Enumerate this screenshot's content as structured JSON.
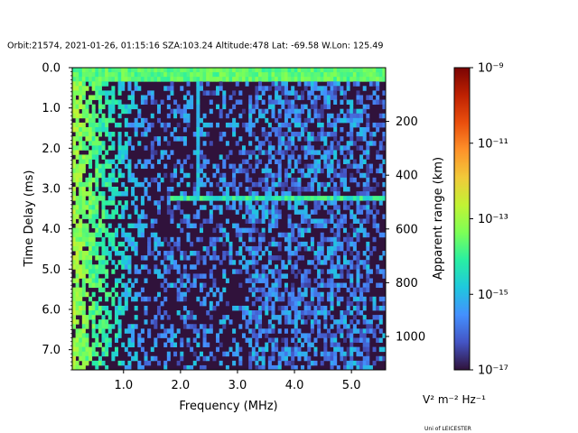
{
  "chart_data": {
    "type": "heatmap",
    "title": "Orbit:21574, 2021-01-26, 01:15:16 SZA:103.24 Altitude:478 Lat: -69.58 W.Lon: 125.49",
    "xlabel": "Frequency (MHz)",
    "ylabel": "Time Delay (ms)",
    "y2label": "Apparent range (km)",
    "xlim": [
      0.1,
      5.6
    ],
    "ylim": [
      7.5,
      0.0
    ],
    "x_ticks": [
      1.0,
      2.0,
      3.0,
      4.0,
      5.0
    ],
    "x_tick_labels": [
      "1.0",
      "2.0",
      "3.0",
      "4.0",
      "5.0"
    ],
    "y_ticks": [
      0.0,
      1.0,
      2.0,
      3.0,
      4.0,
      5.0,
      6.0,
      7.0
    ],
    "y_tick_labels": [
      "0.0",
      "1.0",
      "2.0",
      "3.0",
      "4.0",
      "5.0",
      "6.0",
      "7.0"
    ],
    "y2_ticks": [
      200,
      400,
      600,
      800,
      1000
    ],
    "y2_tick_labels": [
      "200",
      "400",
      "600",
      "800",
      "1000"
    ],
    "y2_km_per_ms": 149.9,
    "colorbar": {
      "scale": "log",
      "range_exponents": [
        -17,
        -9
      ],
      "tick_exponents": [
        -9,
        -11,
        -13,
        -15,
        -17
      ],
      "tick_labels": [
        "10⁻⁹",
        "10⁻¹¹",
        "10⁻¹³",
        "10⁻¹⁵",
        "10⁻¹⁷"
      ],
      "unit_label": "V² m⁻² Hz⁻¹",
      "colors": [
        "#30123b",
        "#4454c4",
        "#4490fe",
        "#1fc8de",
        "#29efa2",
        "#7dff56",
        "#c1f334",
        "#f1ca3a",
        "#fe922a",
        "#ea4f0d",
        "#be2102",
        "#7a0403"
      ]
    },
    "features": {
      "band_high_ms": [
        0.05,
        0.3
      ],
      "band_low_ms": [
        3.15,
        3.3
      ],
      "band_low_start_mhz": 1.8,
      "vertical_line_mhz": 2.3,
      "strong_low_freq_mhz": [
        0.1,
        1.5
      ],
      "background_exponent": -17,
      "noise_peak_exponent": -14
    }
  },
  "credit": "Uni of LEICESTER"
}
